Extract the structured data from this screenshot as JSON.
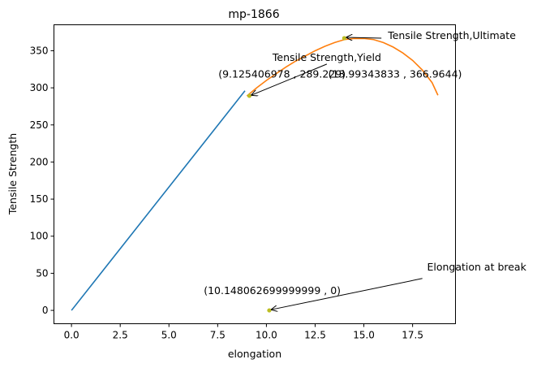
{
  "chart_data": {
    "type": "line",
    "title": "mp-1866",
    "xlabel": "elongation",
    "ylabel": "Tensile Strength",
    "xlim": [
      -0.9,
      19.7
    ],
    "ylim": [
      -18,
      385
    ],
    "grid": false,
    "x_ticks": [
      0.0,
      2.5,
      5.0,
      7.5,
      10.0,
      12.5,
      15.0,
      17.5
    ],
    "x_tick_labels": [
      "0.0",
      "2.5",
      "5.0",
      "7.5",
      "10.0",
      "12.5",
      "15.0",
      "17.5"
    ],
    "y_ticks": [
      0,
      50,
      100,
      150,
      200,
      250,
      300,
      350
    ],
    "y_tick_labels": [
      "0",
      "50",
      "100",
      "150",
      "200",
      "250",
      "300",
      "350"
    ],
    "series": [
      {
        "color": "#1f77b4",
        "x": [
          0,
          8.9
        ],
        "y": [
          0,
          296
        ]
      },
      {
        "color": "#ff7f0e",
        "x": [
          9.0,
          9.5,
          10.0,
          10.5,
          11.0,
          11.5,
          12.0,
          12.5,
          13.0,
          13.5,
          14.0,
          14.5,
          15.0,
          15.5,
          16.0,
          16.5,
          17.0,
          17.5,
          18.0,
          18.5,
          18.8
        ],
        "y": [
          289,
          300,
          310,
          319,
          328,
          336,
          343,
          350,
          356,
          361,
          365,
          366.5,
          366.5,
          365,
          361,
          355,
          347,
          337,
          324,
          307,
          290
        ]
      }
    ],
    "points": [
      {
        "x": 9.125406978,
        "y": 289.229,
        "color": "#bcbd22"
      },
      {
        "x": 13.99343833,
        "y": 366.9644,
        "color": "#bcbd22"
      },
      {
        "x": 10.148062699999999,
        "y": 0,
        "color": "#bcbd22"
      }
    ],
    "annotations": [
      {
        "name": "yield",
        "label": "Tensile Strength,Yield",
        "coords": "(9.125406978 , 289.229)",
        "target": [
          9.125406978,
          289.229
        ],
        "text_at": [
          13.1,
          332
        ]
      },
      {
        "name": "ultimate",
        "label": "Tensile Strength,Ultimate",
        "coords": "(13.99343833 , 366.9644)",
        "target": [
          13.99343833,
          366.9644
        ],
        "text_at": [
          15.9,
          366.9644
        ]
      },
      {
        "name": "break",
        "label": "Elongation at break",
        "coords": "(10.148062699999999 , 0)",
        "target": [
          10.148062699999999,
          0
        ],
        "text_at": [
          18.0,
          43
        ]
      }
    ]
  }
}
